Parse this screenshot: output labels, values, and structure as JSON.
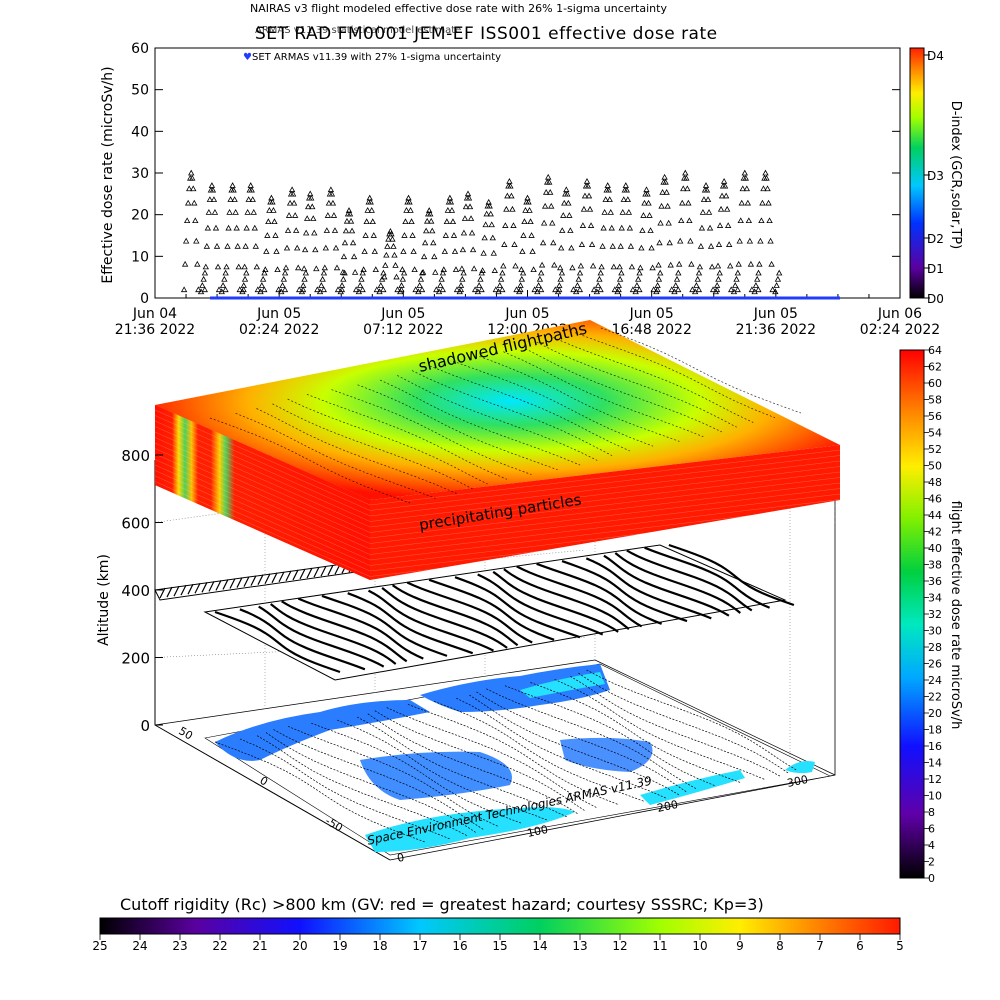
{
  "legend": {
    "nairas": "NAIRAS v3 flight modeled effective dose rate with 26% 1-sigma uncertainty",
    "armas_model": "ARMAS v11.39 statistical model estimate",
    "armas_set": "SET ARMAS v11.39 with 27% 1-sigma uncertainty"
  },
  "colors": {
    "series_marker": "#000000",
    "armas_line": "#1f3cff",
    "hazard_high": "#ff1a00",
    "hazard_low": "#1a2bff"
  },
  "chart_data": [
    {
      "type": "scatter",
      "title": "SET RAD FM0001 JEM-EF ISS001 effective dose rate",
      "ylabel": "Effective dose rate (microSv/h)",
      "ylim": [
        0,
        60
      ],
      "yticks": [
        0,
        10,
        20,
        30,
        40,
        50,
        60
      ],
      "xticks": [
        {
          "l1": "Jun 04",
          "l2": "21:36 2022"
        },
        {
          "l1": "Jun 05",
          "l2": "02:24 2022"
        },
        {
          "l1": "Jun 05",
          "l2": "07:12 2022"
        },
        {
          "l1": "Jun 05",
          "l2": "12:00 2022"
        },
        {
          "l1": "Jun 05",
          "l2": "16:48 2022"
        },
        {
          "l1": "Jun 05",
          "l2": "21:36 2022"
        },
        {
          "l1": "Jun 06",
          "l2": "02:24 2022"
        }
      ],
      "x_unit_note": "hours after Jun 04 21:36 2022",
      "series": [
        {
          "name": "NAIRAS v3 flight modeled effective dose rate",
          "marker": "triangle",
          "orbit_peaks_x": [
            1.4,
            2.2,
            3.0,
            3.7,
            4.5,
            5.3,
            6.0,
            6.8,
            7.5,
            8.3,
            9.1,
            9.8,
            10.6,
            11.4,
            12.1,
            12.9,
            13.7,
            14.4,
            15.2,
            15.9,
            16.7,
            17.5,
            18.2,
            19.0,
            19.7,
            20.5,
            21.3,
            22.0,
            22.8,
            23.6
          ],
          "orbit_peaks_y": [
            30,
            27,
            27,
            27,
            24,
            26,
            25,
            26,
            21,
            24,
            16,
            24,
            21,
            24,
            25,
            23,
            28,
            24,
            29,
            26,
            28,
            27,
            27,
            26,
            29,
            30,
            27,
            28,
            30,
            30
          ]
        }
      ],
      "secondary_axis": {
        "label": "D-index (GCR,solar,TP)",
        "ticks": [
          "D0",
          "D1",
          "D2",
          "D3",
          "D4"
        ]
      }
    },
    {
      "type": "heatmap",
      "title": "",
      "annotations": [
        "shadowed flightpaths",
        "precipitating particles"
      ],
      "zlabel": "Altitude (km)",
      "zticks": [
        0,
        200,
        400,
        600,
        800
      ],
      "lon_ticks": [
        0,
        100,
        200,
        300
      ],
      "lat_ticks": [
        -50,
        0,
        50
      ],
      "colorbar": {
        "label": "flight effective dose rate microSv/h",
        "min": 0,
        "max": 64,
        "step": 2
      },
      "credit": "Space Environment Technologies ARMAS v11.39"
    },
    {
      "type": "colorbar",
      "title": "Cutoff rigidity (Rc) >800 km (GV: red = greatest hazard; courtesy SSSRC; Kp=3)",
      "ticks": [
        25,
        24,
        23,
        22,
        21,
        20,
        19,
        18,
        17,
        16,
        15,
        14,
        13,
        12,
        11,
        10,
        9,
        8,
        7,
        6,
        5
      ]
    }
  ]
}
